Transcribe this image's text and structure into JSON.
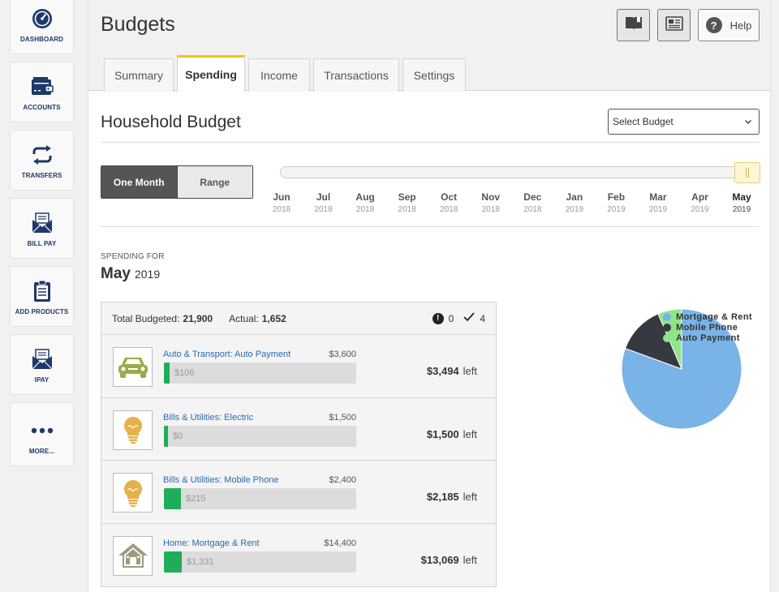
{
  "sidebar": {
    "items": [
      {
        "label": "DASHBOARD",
        "icon": "speedometer-icon"
      },
      {
        "label": "ACCOUNTS",
        "icon": "wallet-icon"
      },
      {
        "label": "TRANSFERS",
        "icon": "transfer-arrows-icon"
      },
      {
        "label": "BILL PAY",
        "icon": "envelope-icon"
      },
      {
        "label": "ADD PRODUCTS",
        "icon": "clipboard-icon"
      },
      {
        "label": "IPAY",
        "icon": "envelope-icon"
      },
      {
        "label": "MORE...",
        "icon": "dots-icon"
      }
    ]
  },
  "header": {
    "title": "Budgets",
    "help_label": "Help",
    "buttons": [
      "book-icon",
      "newspaper-icon",
      "help-icon"
    ]
  },
  "tabs": [
    {
      "label": "Summary"
    },
    {
      "label": "Spending",
      "active": true
    },
    {
      "label": "Income"
    },
    {
      "label": "Transactions"
    },
    {
      "label": "Settings"
    }
  ],
  "budget": {
    "title": "Household Budget",
    "select_label": "Select Budget"
  },
  "range_toggle": {
    "one_month": "One Month",
    "range": "Range",
    "selected": "One Month"
  },
  "timeline": {
    "selected_index": 11,
    "months": [
      {
        "m": "Jun",
        "y": "2018"
      },
      {
        "m": "Jul",
        "y": "2018"
      },
      {
        "m": "Aug",
        "y": "2018"
      },
      {
        "m": "Sep",
        "y": "2018"
      },
      {
        "m": "Oct",
        "y": "2018"
      },
      {
        "m": "Nov",
        "y": "2018"
      },
      {
        "m": "Dec",
        "y": "2018"
      },
      {
        "m": "Jan",
        "y": "2019"
      },
      {
        "m": "Feb",
        "y": "2019"
      },
      {
        "m": "Mar",
        "y": "2019"
      },
      {
        "m": "Apr",
        "y": "2019"
      },
      {
        "m": "May",
        "y": "2019"
      }
    ]
  },
  "spending": {
    "label": "SPENDING FOR",
    "month": "May",
    "year": "2019"
  },
  "summary": {
    "total_label": "Total Budgeted:",
    "total_value": "21,900",
    "actual_label": "Actual:",
    "actual_value": "1,652",
    "alert_symbol": "!",
    "alert_count": "0",
    "check_count": "4"
  },
  "categories": [
    {
      "name": "Auto & Transport: Auto Payment",
      "budget": "$3,600",
      "spent": "$106",
      "progress": 0.03,
      "left": "$3,494",
      "left_label": "left",
      "icon": "car-icon",
      "icon_color": "#9aac4a"
    },
    {
      "name": "Bills & Utilities: Electric",
      "budget": "$1,500",
      "spent": "$0",
      "progress": 0.0,
      "left": "$1,500",
      "left_label": "left",
      "icon": "lightbulb-icon",
      "icon_color": "#e6b14a"
    },
    {
      "name": "Bills & Utilities: Mobile Phone",
      "budget": "$2,400",
      "spent": "$215",
      "progress": 0.09,
      "left": "$2,185",
      "left_label": "left",
      "icon": "lightbulb-icon",
      "icon_color": "#e6b14a"
    },
    {
      "name": "Home: Mortgage & Rent",
      "budget": "$14,400",
      "spent": "$1,331",
      "progress": 0.092,
      "left": "$13,069",
      "left_label": "left",
      "icon": "house-icon",
      "icon_color": "#a09a82"
    }
  ],
  "chart_data": {
    "type": "pie",
    "title": "",
    "legend_position": "top-right",
    "slices": [
      {
        "label": "Mortgage & Rent",
        "value": 1331,
        "color": "#7ab3e8"
      },
      {
        "label": "Mobile Phone",
        "value": 215,
        "color": "#363a40"
      },
      {
        "label": "Auto Payment",
        "value": 106,
        "color": "#90e48a"
      }
    ]
  },
  "colors": {
    "nav_text": "#1e3868",
    "tab_accent": "#f0c419",
    "progress_fill": "#1fad5a",
    "link": "#2a6ab0"
  }
}
